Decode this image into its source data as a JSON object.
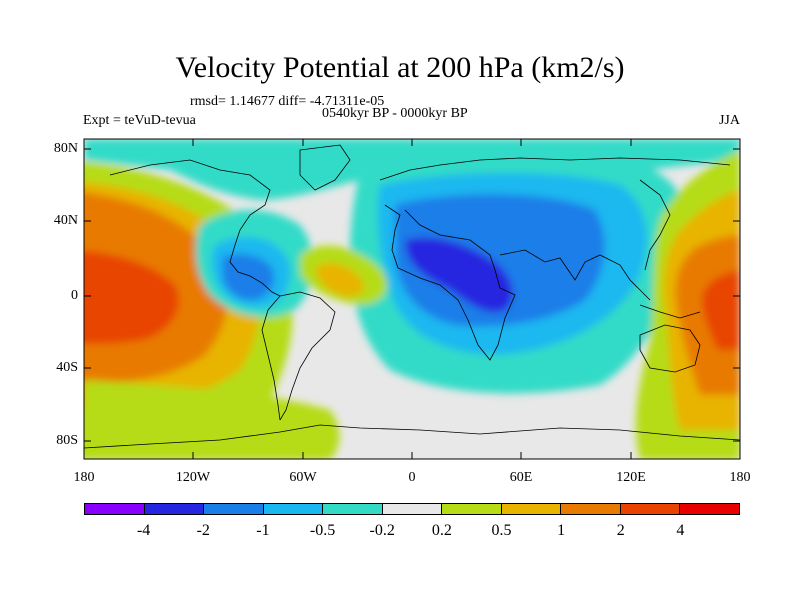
{
  "title": "Velocity Potential at 200 hPa (km2/s)",
  "stats": "rmsd= 1.14677 diff= -4.71311e-05",
  "period": "0540kyr BP - 0000kyr BP",
  "experiment": "Expt = teVuD-tevua",
  "season": "JJA",
  "axes": {
    "y_ticks": [
      "80N",
      "40N",
      "0",
      "40S",
      "80S"
    ],
    "x_ticks": [
      "180",
      "120W",
      "60W",
      "0",
      "60E",
      "120E",
      "180"
    ]
  },
  "colorbar": {
    "colors": [
      "#8a00ff",
      "#2626e0",
      "#1a7ee8",
      "#1ab8f0",
      "#33dbc7",
      "#e8e8e8",
      "#b5dc14",
      "#e8b400",
      "#e87a00",
      "#e84400",
      "#e80000"
    ],
    "labels": [
      "-4",
      "-2",
      "-1",
      "-0.5",
      "-0.2",
      "0.2",
      "0.5",
      "1",
      "2",
      "4"
    ]
  }
}
